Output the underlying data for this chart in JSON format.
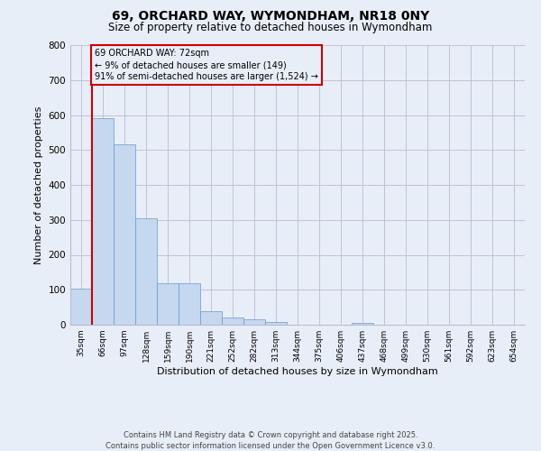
{
  "title1": "69, ORCHARD WAY, WYMONDHAM, NR18 0NY",
  "title2": "Size of property relative to detached houses in Wymondham",
  "xlabel": "Distribution of detached houses by size in Wymondham",
  "ylabel": "Number of detached properties",
  "categories": [
    "35sqm",
    "66sqm",
    "97sqm",
    "128sqm",
    "159sqm",
    "190sqm",
    "221sqm",
    "252sqm",
    "282sqm",
    "313sqm",
    "344sqm",
    "375sqm",
    "406sqm",
    "437sqm",
    "468sqm",
    "499sqm",
    "530sqm",
    "561sqm",
    "592sqm",
    "623sqm",
    "654sqm"
  ],
  "values": [
    102,
    590,
    515,
    305,
    120,
    120,
    38,
    20,
    15,
    8,
    0,
    0,
    0,
    5,
    0,
    0,
    0,
    0,
    0,
    0,
    0
  ],
  "bar_color": "#c5d8f0",
  "bar_edgecolor": "#6699cc",
  "grid_color": "#bbbbcc",
  "bg_color": "#e8eef8",
  "vline_color": "#cc0000",
  "annotation_line1": "69 ORCHARD WAY: 72sqm",
  "annotation_line2": "← 9% of detached houses are smaller (149)",
  "annotation_line3": "91% of semi-detached houses are larger (1,524) →",
  "ylim_max": 800,
  "yticks": [
    0,
    100,
    200,
    300,
    400,
    500,
    600,
    700,
    800
  ],
  "footer": "Contains HM Land Registry data © Crown copyright and database right 2025.\nContains public sector information licensed under the Open Government Licence v3.0.",
  "fig_width": 6.0,
  "fig_height": 5.0,
  "dpi": 100
}
